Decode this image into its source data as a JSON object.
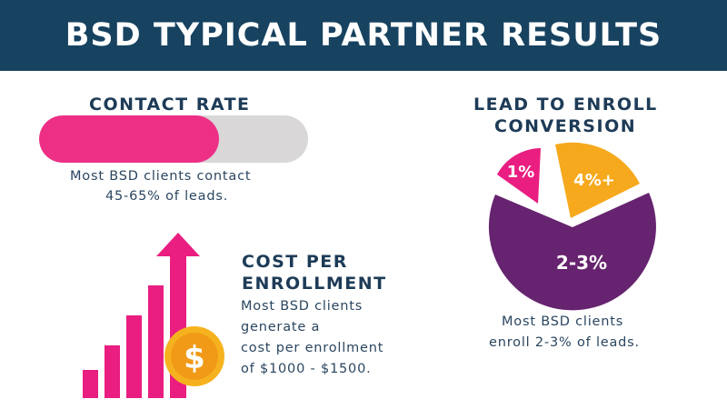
{
  "header": {
    "title": "BSD TYPICAL PARTNER RESULTS"
  },
  "contact_rate": {
    "title": "CONTACT RATE",
    "description": [
      "Most BSD clients contact",
      "45-65% of leads."
    ],
    "bar_fill_fraction": 0.67
  },
  "cost_per_enrollment": {
    "title": [
      "COST PER",
      "ENROLLMENT"
    ],
    "description": [
      "Most BSD clients",
      "generate a",
      "cost per enrollment",
      "of $1000 - $1500."
    ],
    "coin_symbol": "$",
    "icon": "rising-bar-chart-with-dollar-coin-icon"
  },
  "lead_to_enroll": {
    "title": [
      "LEAD TO ENROLL",
      "CONVERSION"
    ],
    "description": [
      "Most BSD clients",
      "enroll 2-3% of leads."
    ],
    "slices": [
      {
        "label": "1%",
        "color": "#e91e80"
      },
      {
        "label": "4%+",
        "color": "#f6a91c"
      },
      {
        "label": "2-3%",
        "color": "#66236f"
      }
    ]
  },
  "colors": {
    "header_bg": "#174260",
    "pink": "#ee2f86",
    "gray": "#d9d7d8",
    "gold": "#f6a91c",
    "purple": "#66236f",
    "navy_text": "#1d3b57"
  }
}
